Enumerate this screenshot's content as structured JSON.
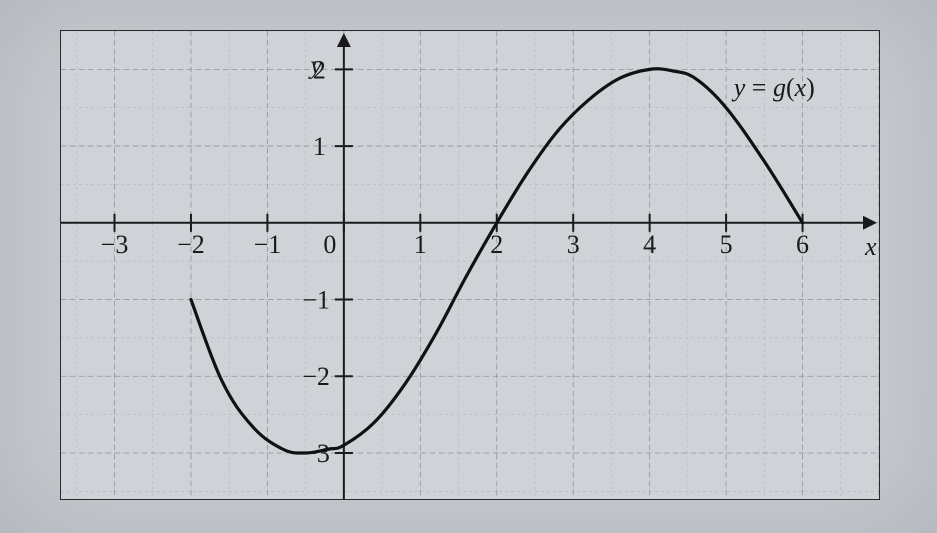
{
  "chart": {
    "type": "line",
    "background_color": "#cfd3d8",
    "paper_color": "#c8ccd2",
    "border_color": "#2a2a2a",
    "axis_color": "#1a1a1a",
    "curve_color": "#111111",
    "grid_color_major": "#8f949c",
    "grid_color_minor": "#aeb3ba",
    "grid_major_step": 1,
    "grid_minor_step": 0.5,
    "xlim": [
      -3.7,
      7.0
    ],
    "ylim": [
      -3.6,
      2.5
    ],
    "x_ticks": [
      -3,
      -2,
      -1,
      0,
      1,
      2,
      3,
      4,
      5,
      6
    ],
    "y_ticks_pos": [
      1,
      2
    ],
    "y_ticks_neg": [
      -1,
      -2,
      -3
    ],
    "x_axis_label": "x",
    "y_axis_label": "y",
    "function_label": "y = g(x)",
    "font_family": "Times New Roman, serif",
    "tick_fontsize": 26,
    "label_fontsize": 26,
    "axis_line_width": 2,
    "curve_line_width": 3.2,
    "grid_major_width": 0.8,
    "grid_minor_width": 0.5,
    "tick_length": 9,
    "arrow_size": 12,
    "curve_points": [
      [
        -2.0,
        -1.0
      ],
      [
        -1.6,
        -2.05
      ],
      [
        -1.2,
        -2.65
      ],
      [
        -0.8,
        -2.95
      ],
      [
        -0.5,
        -3.0
      ],
      [
        -0.2,
        -2.95
      ],
      [
        0.0,
        -2.9
      ],
      [
        0.4,
        -2.6
      ],
      [
        0.8,
        -2.1
      ],
      [
        1.2,
        -1.45
      ],
      [
        1.6,
        -0.7
      ],
      [
        2.0,
        0.0
      ],
      [
        2.4,
        0.65
      ],
      [
        2.8,
        1.2
      ],
      [
        3.2,
        1.6
      ],
      [
        3.6,
        1.88
      ],
      [
        4.0,
        2.0
      ],
      [
        4.3,
        1.98
      ],
      [
        4.6,
        1.88
      ],
      [
        5.0,
        1.5
      ],
      [
        5.5,
        0.8
      ],
      [
        6.0,
        0.0
      ]
    ]
  }
}
